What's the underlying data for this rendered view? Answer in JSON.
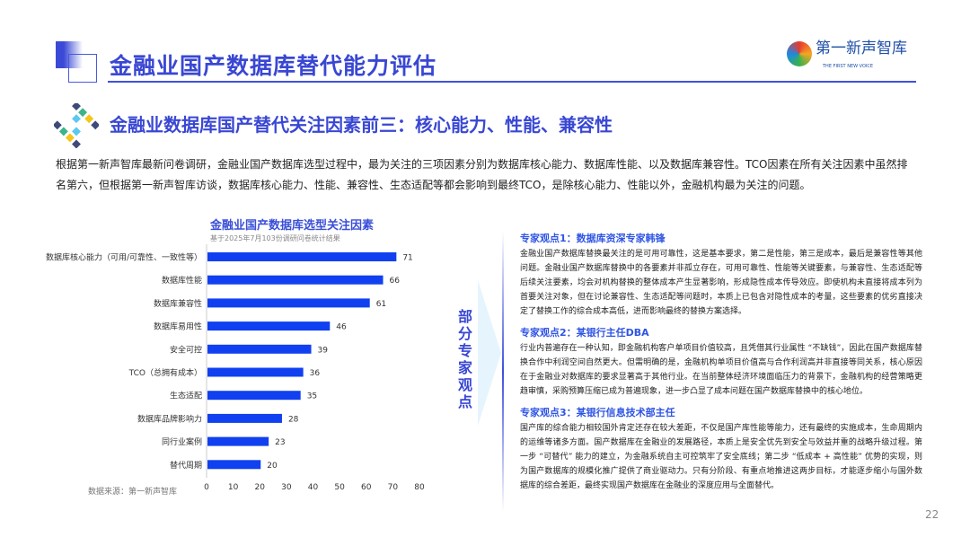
{
  "header": {
    "title": "金融业国产数据库替代能力评估",
    "logo_name": "第一新声智库",
    "logo_sub": "THE FIRST NEW VOICE"
  },
  "subtitle": "金融业数据库国产替代关注因素前三：核心能力、性能、兼容性",
  "intro": "根据第一新声智库最新问卷调研，金融业国产数据库选型过程中，最为关注的三项因素分别为数据库核心能力、数据库性能、以及数据库兼容性。TCO因素在所有关注因素中虽然排名第六，但根据第一新声智库访谈，数据库核心能力、性能、兼容性、生态适配等都会影响到最终TCO，是除核心能力、性能以外，金融机构最为关注的问题。",
  "chart_data": {
    "type": "bar",
    "orientation": "horizontal",
    "title": "金融业国产数据库选型关注因素",
    "subtitle": "基于2025年7月103份调研问卷统计结果",
    "categories": [
      "数据库核心能力（可用/可靠性、一致性等）",
      "数据库性能",
      "数据库兼容性",
      "数据库易用性",
      "安全可控",
      "TCO（总拥有成本）",
      "生态适配",
      "数据库品牌影响力",
      "同行业案例",
      "替代周期"
    ],
    "values": [
      71,
      66,
      61,
      46,
      39,
      36,
      35,
      28,
      23,
      20
    ],
    "xlim": [
      0,
      80
    ],
    "xticks": [
      0,
      10,
      20,
      30,
      40,
      50,
      60,
      70,
      80
    ],
    "bar_color": "#1040f0"
  },
  "source": "数据来源：第一新声智库",
  "side_label": "部分专家观点",
  "opinions": [
    {
      "title": "专家观点1：数据库资深专家韩锋",
      "text": "金融业国产数据库替换最关注的是可用可靠性，这是基本要求，第二是性能，第三是成本，最后是兼容性等其他问题。金融业国产数据库替换中的各要素并非孤立存在，可用可靠性、性能等关键要素，与兼容性、生态适配等后续关注要素，均会对机构替换的整体成本产生显著影响，形成隐性成本传导效应。即使机构未直接将成本列为首要关注对象，但在讨论兼容性、生态适配等问题时，本质上已包含对隐性成本的考量，这些要素的优劣直接决定了替换工作的综合成本高低，进而影响最终的替换方案选择。"
    },
    {
      "title": "专家观点2：某银行主任DBA",
      "text": "行业内普遍存在一种认知，即金融机构客户单项目价值较高，且凭借其行业属性 “不缺钱”，因此在国产数据库替换合作中利润空间自然更大。但需明确的是，金融机构单项目价值高与合作利润高并非直接等同关系，核心原因在于金融业对数据库的要求显著高于其他行业。在当前整体经济环境面临压力的背景下，金融机构的经营策略更趋审慎，采购预算压缩已成为普遍现象，进一步凸显了成本问题在国产数据库替换中的核心地位。"
    },
    {
      "title": "专家观点3：某银行信息技术部主任",
      "text": "国产库的综合能力相较国外肯定还存在较大差距，不仅是国产库性能等能力，还有最终的实施成本，生命周期内的运维等诸多方面。国产数据库在金融业的发展路径，本质上是安全优先到安全与效益并重的战略升级过程。第一步 “可替代” 能力的建立，为金融系统自主可控筑牢了安全底线；第二步 “低成本 + 高性能” 优势的实现，则为国产数据库的规模化推广提供了商业驱动力。只有分阶段、有重点地推进这两步目标，才能逐步缩小与国外数据库的综合差距，最终实现国产数据库在金融业的深度应用与全面替代。"
    }
  ],
  "page_number": "22"
}
